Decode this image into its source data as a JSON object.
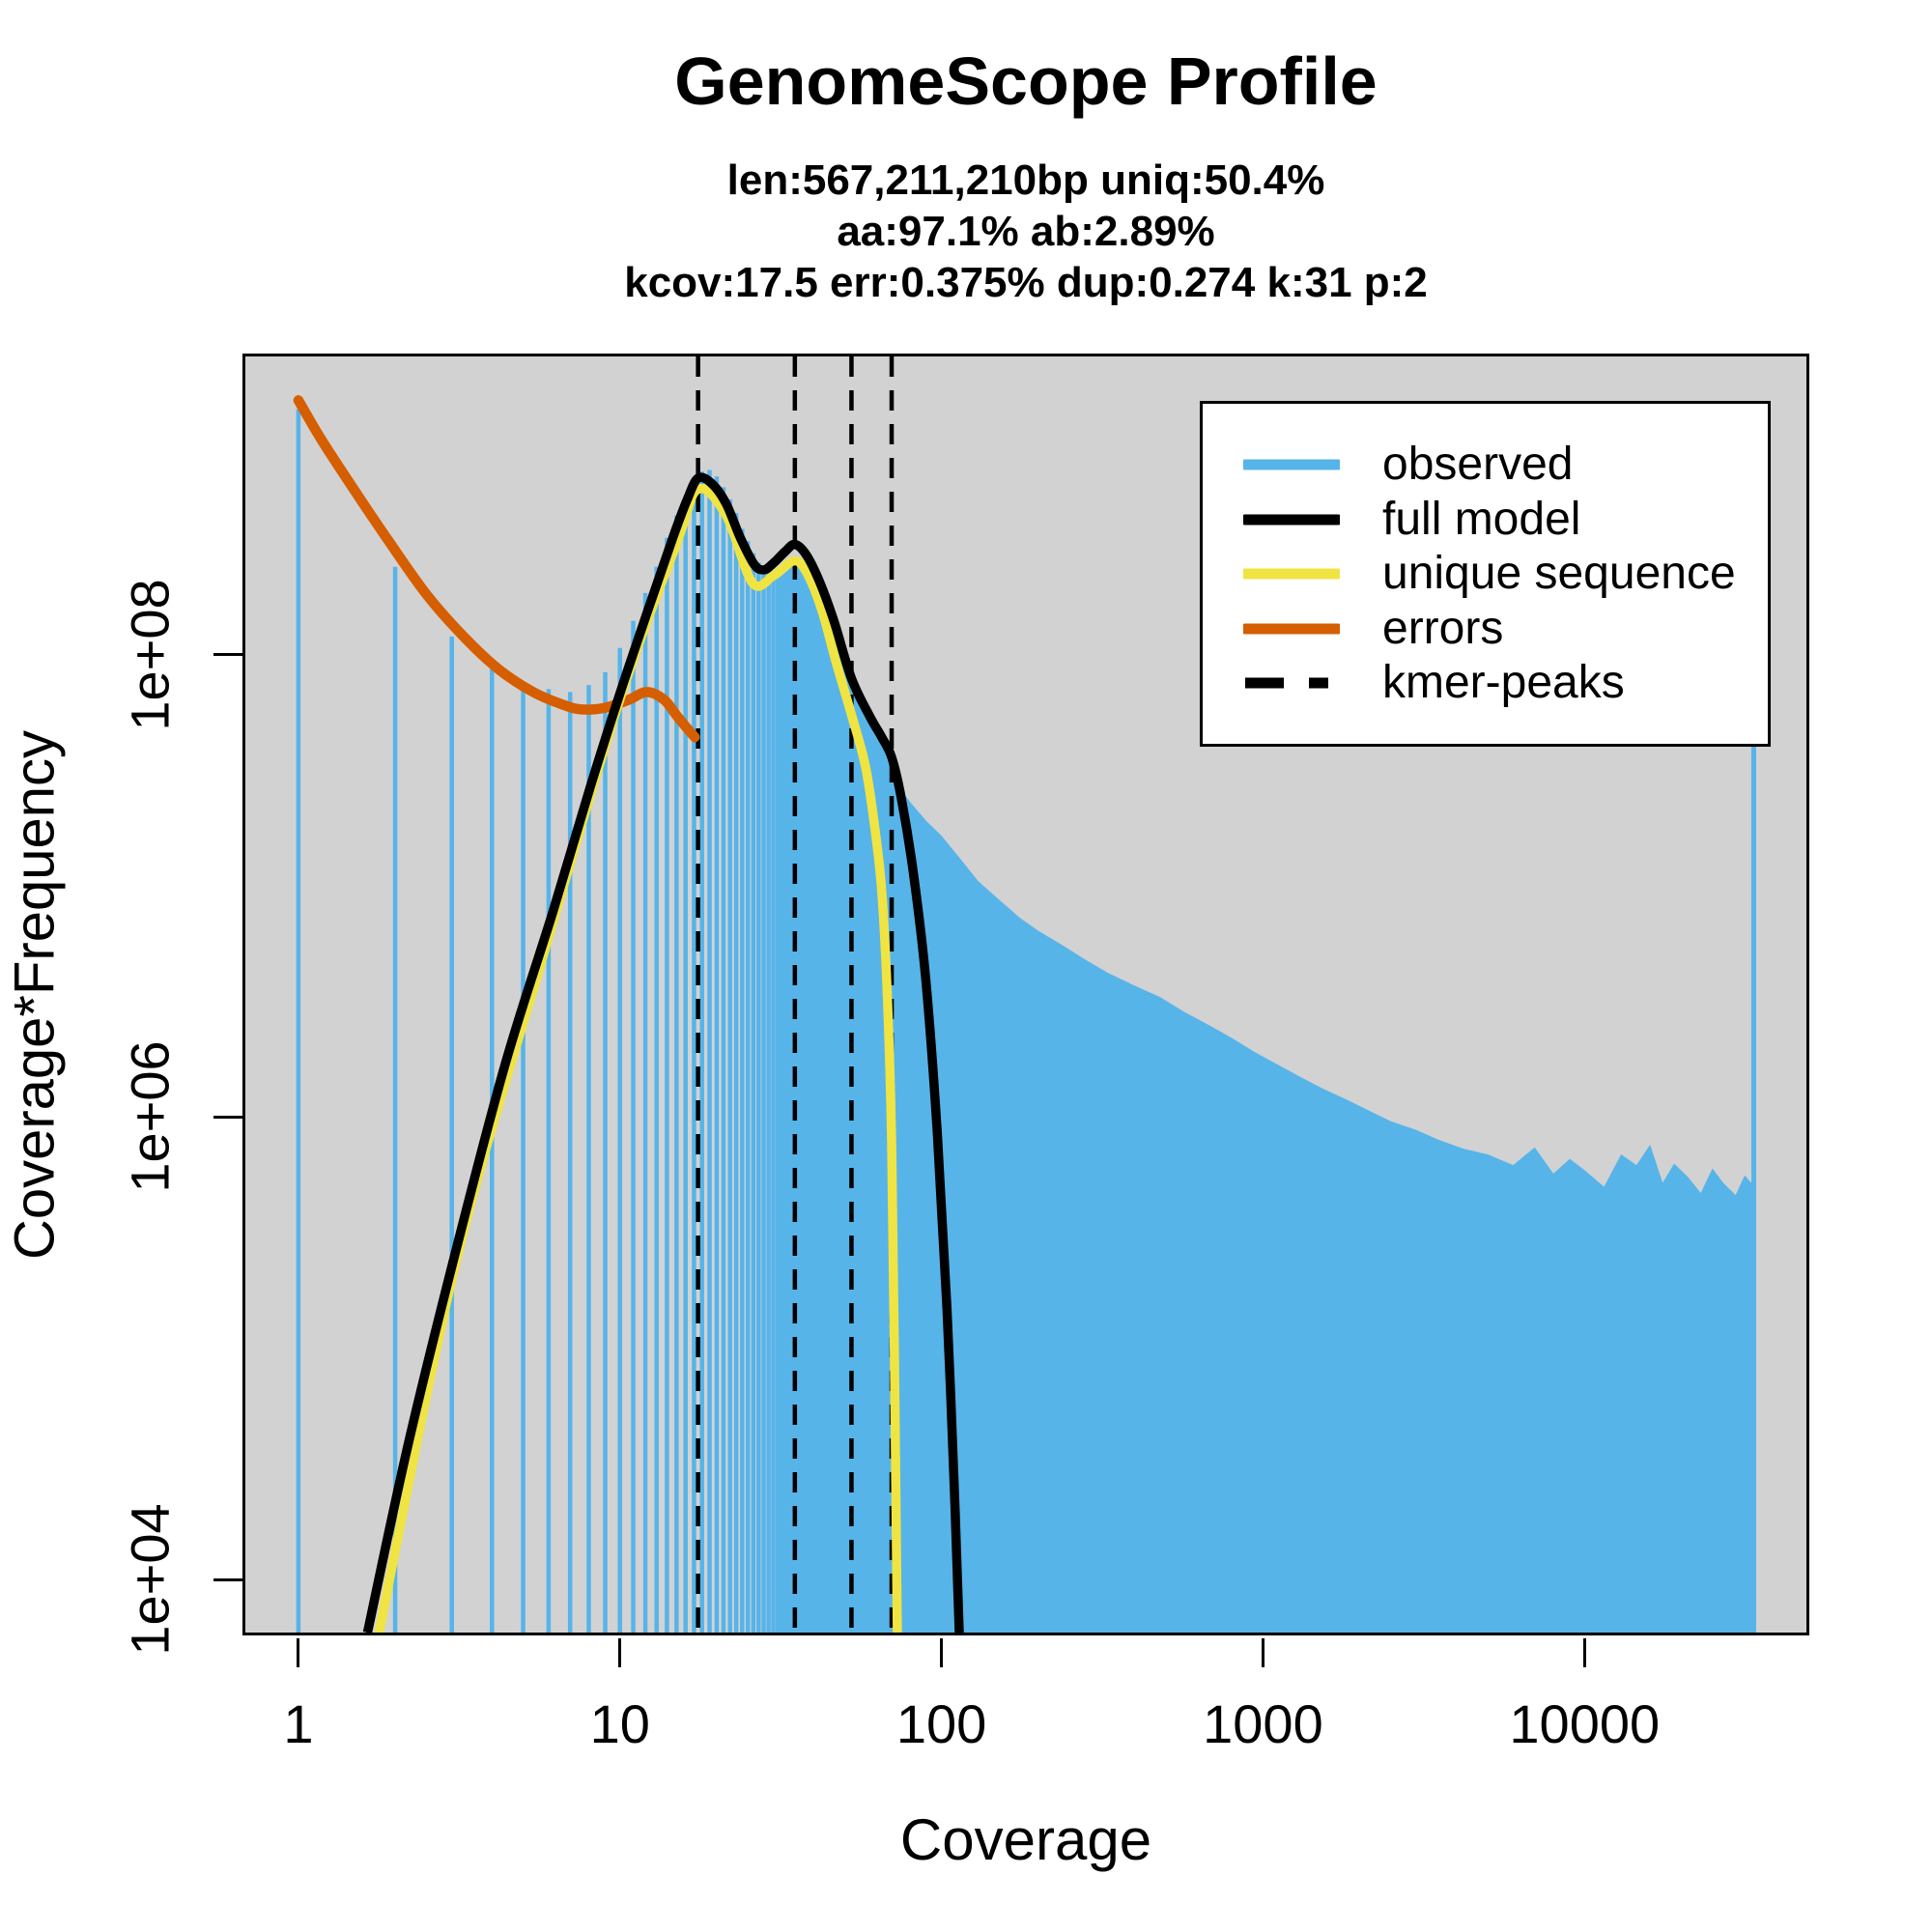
{
  "title": "GenomeScope Profile",
  "subtitle_lines": [
    "len:567,211,210bp uniq:50.4%",
    "aa:97.1% ab:2.89%",
    "kcov:17.5 err:0.375%  dup:0.274  k:31 p:2"
  ],
  "x_axis": {
    "label": "Coverage",
    "scale": "log",
    "ticks": [
      {
        "value": 1,
        "label": "1"
      },
      {
        "value": 10,
        "label": "10"
      },
      {
        "value": 100,
        "label": "100"
      },
      {
        "value": 1000,
        "label": "1000"
      },
      {
        "value": 10000,
        "label": "10000"
      }
    ]
  },
  "y_axis": {
    "label": "Coverage*Frequency",
    "scale": "log",
    "ticks": [
      {
        "value": 10000.0,
        "label": "1e+04"
      },
      {
        "value": 1000000.0,
        "label": "1e+06"
      },
      {
        "value": 100000000.0,
        "label": "1e+08"
      }
    ]
  },
  "legend": [
    {
      "key": "observed",
      "label": "observed",
      "color": "#56B4E9",
      "style": "solid"
    },
    {
      "key": "full-model",
      "label": "full model",
      "color": "#000000",
      "style": "solid"
    },
    {
      "key": "unique-sequence",
      "label": "unique sequence",
      "color": "#F0E442",
      "style": "solid"
    },
    {
      "key": "errors",
      "label": "errors",
      "color": "#D55E00",
      "style": "solid"
    },
    {
      "key": "kmer-peaks",
      "label": "kmer-peaks",
      "color": "#000000",
      "style": "dashed"
    }
  ],
  "colors": {
    "observed": "#56B4E9",
    "full_model": "#000000",
    "unique_sequence": "#F0E442",
    "errors": "#D55E00",
    "kmer_peaks": "#000000",
    "panel_background": "#D2D2D2",
    "page_background": "#FFFFFF"
  },
  "chart_data": {
    "type": "area",
    "subtype": "genomescope-kmer-profile-histogram-with-model-curves",
    "x_scale": "log",
    "y_scale": "log",
    "xlim": [
      0.684,
      49000
    ],
    "ylim": [
      5900,
      1950000000.0
    ],
    "grid": false,
    "legend_position": "top-right",
    "kmer_peaks": [
      17.5,
      35,
      52.5,
      70
    ],
    "observed_bars": [
      [
        1,
        1150000000.0
      ],
      [
        2,
        240000000.0
      ],
      [
        3,
        120000000.0
      ],
      [
        4,
        87000000.0
      ],
      [
        5,
        76000000.0
      ],
      [
        6,
        71000000.0
      ],
      [
        7,
        69000000.0
      ],
      [
        8,
        74000000.0
      ],
      [
        9,
        84000000.0
      ],
      [
        10,
        107000000.0
      ],
      [
        11,
        140000000.0
      ],
      [
        12,
        185000000.0
      ],
      [
        13,
        240000000.0
      ],
      [
        14,
        320000000.0
      ],
      [
        15,
        400000000.0
      ],
      [
        16,
        480000000.0
      ],
      [
        17,
        560000000.0
      ],
      [
        18,
        620000000.0
      ],
      [
        19,
        630000000.0
      ],
      [
        20,
        590000000.0
      ],
      [
        21,
        530000000.0
      ],
      [
        22,
        470000000.0
      ],
      [
        23,
        410000000.0
      ],
      [
        24,
        350000000.0
      ],
      [
        25,
        310000000.0
      ],
      [
        26,
        275000000.0
      ],
      [
        27,
        250000000.0
      ],
      [
        28,
        240000000.0
      ],
      [
        29,
        230000000.0
      ],
      [
        30,
        225000000.0
      ],
      [
        31,
        225000000.0
      ]
    ],
    "observed_tail": [
      [
        31,
        225000000.0
      ],
      [
        33,
        240000000.0
      ],
      [
        35,
        255000000.0
      ],
      [
        37,
        250000000.0
      ],
      [
        39,
        230000000.0
      ],
      [
        42,
        180000000.0
      ],
      [
        45,
        145000000.0
      ],
      [
        48,
        115000000.0
      ],
      [
        52,
        89000000.0
      ],
      [
        56,
        70000000.0
      ],
      [
        60,
        55000000.0
      ],
      [
        65,
        42000000.0
      ],
      [
        70,
        31000000.0
      ],
      [
        75,
        26000000.0
      ],
      [
        80,
        23000000.0
      ],
      [
        90,
        19000000.0
      ],
      [
        100,
        16500000.0
      ],
      [
        115,
        13000000.0
      ],
      [
        130,
        10500000.0
      ],
      [
        150,
        8800000.0
      ],
      [
        175,
        7300000.0
      ],
      [
        200,
        6400000.0
      ],
      [
        240,
        5500000.0
      ],
      [
        280,
        4800000.0
      ],
      [
        330,
        4200000.0
      ],
      [
        400,
        3700000.0
      ],
      [
        480,
        3300000.0
      ],
      [
        570,
        2850000.0
      ],
      [
        680,
        2500000.0
      ],
      [
        800,
        2200000.0
      ],
      [
        950,
        1900000.0
      ],
      [
        1100,
        1700000.0
      ],
      [
        1300,
        1500000.0
      ],
      [
        1550,
        1320000.0
      ],
      [
        1800,
        1200000.0
      ],
      [
        2100,
        1080000.0
      ],
      [
        2500,
        960000.0
      ],
      [
        3000,
        880000.0
      ],
      [
        3500,
        800000.0
      ],
      [
        4200,
        730000.0
      ],
      [
        5000,
        690000.0
      ],
      [
        6000,
        620000.0
      ],
      [
        7000,
        740000.0
      ],
      [
        8000,
        570000.0
      ],
      [
        9000,
        660000.0
      ],
      [
        10000,
        590000.0
      ],
      [
        11500,
        500000.0
      ],
      [
        13000,
        690000.0
      ],
      [
        14500,
        620000.0
      ],
      [
        16000,
        760000.0
      ],
      [
        17500,
        520000.0
      ],
      [
        19000,
        630000.0
      ],
      [
        21000,
        550000.0
      ],
      [
        23000,
        470000.0
      ],
      [
        25000,
        600000.0
      ],
      [
        27000,
        520000.0
      ],
      [
        29500,
        460000.0
      ],
      [
        31500,
        560000.0
      ],
      [
        33000,
        520000.0
      ],
      [
        33500,
        500000.0
      ]
    ],
    "observed_spike": [
      33600,
      90000000.0
    ],
    "full_model": [
      [
        1.64,
        5900.0
      ],
      [
        2.2,
        39000.0
      ],
      [
        3.1,
        270000.0
      ],
      [
        4.4,
        1700000.0
      ],
      [
        6.2,
        7800000.0
      ],
      [
        8.1,
        27000000.0
      ],
      [
        10,
        68000000.0
      ],
      [
        12.3,
        160000000.0
      ],
      [
        14.6,
        320000000.0
      ],
      [
        16.2,
        470000000.0
      ],
      [
        17.5,
        580000000.0
      ],
      [
        19.3,
        550000000.0
      ],
      [
        21.4,
        450000000.0
      ],
      [
        23.7,
        320000000.0
      ],
      [
        26.2,
        245000000.0
      ],
      [
        28.1,
        233000000.0
      ],
      [
        30.1,
        250000000.0
      ],
      [
        32.7,
        280000000.0
      ],
      [
        35,
        300000000.0
      ],
      [
        38,
        270000000.0
      ],
      [
        41.9,
        205000000.0
      ],
      [
        46.3,
        140000000.0
      ],
      [
        52.5,
        79000000.0
      ],
      [
        59.9,
        54000000.0
      ],
      [
        65.2,
        44000000.0
      ],
      [
        70,
        36000000.0
      ],
      [
        75,
        24000000.0
      ],
      [
        81.7,
        11500000.0
      ],
      [
        89.3,
        4000000.0
      ],
      [
        97.1,
        850000.0
      ],
      [
        104,
        150000.0
      ],
      [
        110,
        22000.0
      ],
      [
        113.6,
        5900.0
      ]
    ],
    "unique_sequence": [
      [
        1.78,
        5900.0
      ],
      [
        3.1,
        240000.0
      ],
      [
        5.8,
        5100000.0
      ],
      [
        10,
        64000000.0
      ],
      [
        15.1,
        310000000.0
      ],
      [
        17.5,
        520000000.0
      ],
      [
        21.4,
        400000000.0
      ],
      [
        25.8,
        205000000.0
      ],
      [
        30.1,
        220000000.0
      ],
      [
        35,
        255000000.0
      ],
      [
        38.5,
        220000000.0
      ],
      [
        42.5,
        155000000.0
      ],
      [
        47,
        93000000.0
      ],
      [
        52.5,
        55000000.0
      ],
      [
        58,
        33000000.0
      ],
      [
        62,
        18000000.0
      ],
      [
        65.2,
        9500000.0
      ],
      [
        67.9,
        3300000.0
      ],
      [
        70,
        780000.0
      ],
      [
        71.4,
        93000.0
      ],
      [
        72.9,
        5900.0
      ]
    ],
    "errors": [
      [
        1.0,
        1260000000.0
      ],
      [
        1.18,
        850000000.0
      ],
      [
        1.5,
        510000000.0
      ],
      [
        1.91,
        310000000.0
      ],
      [
        2.52,
        180000000.0
      ],
      [
        3.32,
        117000000.0
      ],
      [
        4.22,
        86000000.0
      ],
      [
        5.37,
        69000000.0
      ],
      [
        6.6,
        61000000.0
      ],
      [
        7.58,
        58000000.0
      ],
      [
        9.0,
        59000000.0
      ],
      [
        10.7,
        64000000.0
      ],
      [
        12.1,
        69000000.0
      ],
      [
        13.7,
        64000000.0
      ],
      [
        15.1,
        54000000.0
      ],
      [
        16.4,
        47000000.0
      ],
      [
        17.1,
        44000000.0
      ]
    ]
  }
}
